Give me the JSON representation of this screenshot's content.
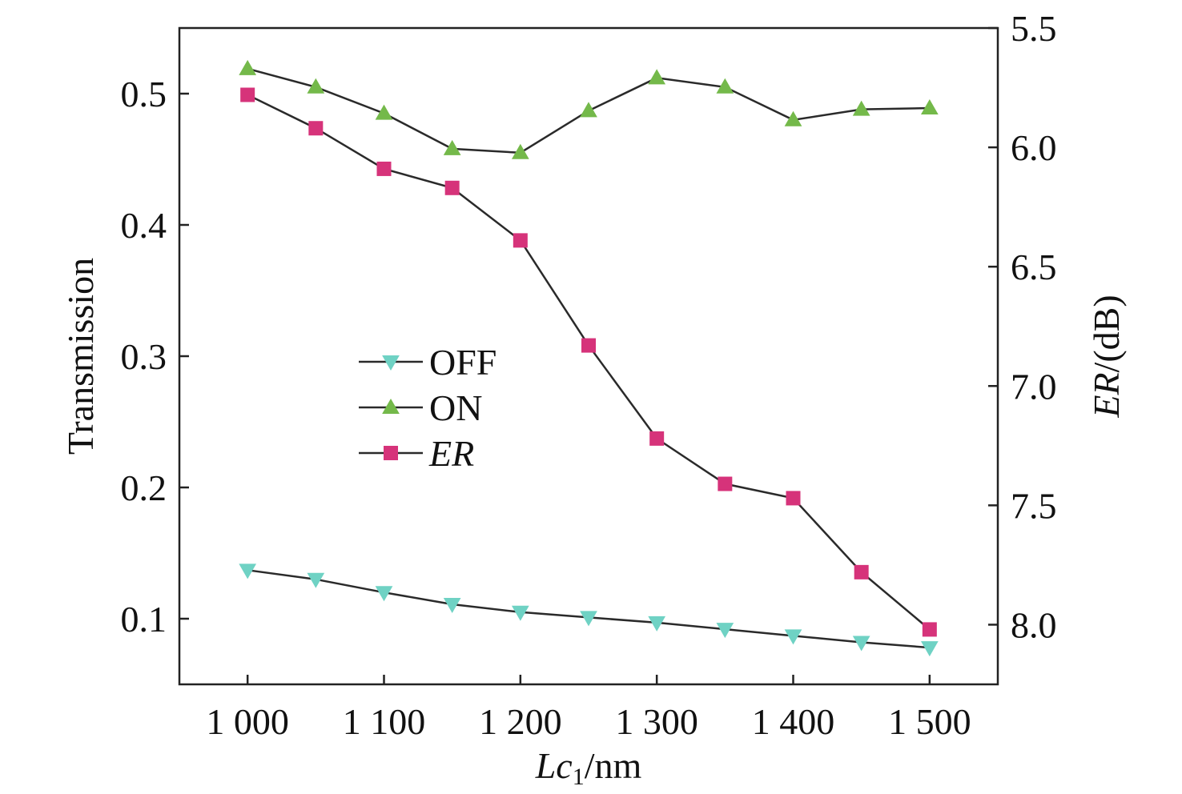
{
  "chart_data": {
    "type": "line",
    "x": [
      1000,
      1050,
      1100,
      1150,
      1200,
      1250,
      1300,
      1350,
      1400,
      1450,
      1500
    ],
    "xlim": [
      950,
      1550
    ],
    "x_ticks": [
      1000,
      1100,
      1200,
      1300,
      1400,
      1500
    ],
    "x_tick_labels": [
      "1 000",
      "1 100",
      "1 200",
      "1 300",
      "1 400",
      "1 500"
    ],
    "x_label": {
      "italic": "Lc",
      "sub": "1",
      "rest": "/nm"
    },
    "y_left": {
      "label": "Transmission",
      "lim": [
        0.05,
        0.55
      ],
      "ticks": [
        0.1,
        0.2,
        0.3,
        0.4,
        0.5
      ],
      "tick_labels": [
        "0.1",
        "0.2",
        "0.3",
        "0.4",
        "0.5"
      ]
    },
    "y_right": {
      "label_italic": "ER",
      "label_rest": "/(dB)",
      "lim": [
        5.5,
        8.25
      ],
      "inverted": true,
      "ticks": [
        5.5,
        6.0,
        6.5,
        7.0,
        7.5,
        8.0
      ],
      "tick_labels": [
        "5.5",
        "6.0",
        "6.5",
        "7.0",
        "7.5",
        "8.0"
      ]
    },
    "series": [
      {
        "name": "OFF",
        "axis": "left",
        "marker": "triangle-down",
        "color": "#6fd2c4",
        "values": [
          0.137,
          0.13,
          0.12,
          0.111,
          0.105,
          0.101,
          0.097,
          0.092,
          0.087,
          0.082,
          0.078
        ]
      },
      {
        "name": "ON",
        "axis": "left",
        "marker": "triangle-up",
        "color": "#74b94a",
        "values": [
          0.519,
          0.505,
          0.485,
          0.458,
          0.455,
          0.487,
          0.512,
          0.505,
          0.48,
          0.488,
          0.489
        ]
      },
      {
        "name": "ER",
        "italic": true,
        "axis": "right",
        "marker": "square",
        "color": "#d6337a",
        "values": [
          5.78,
          5.92,
          6.09,
          6.17,
          6.39,
          6.83,
          7.22,
          7.41,
          7.47,
          7.78,
          8.02
        ]
      }
    ],
    "legend_position": "center-left",
    "grid": false
  }
}
